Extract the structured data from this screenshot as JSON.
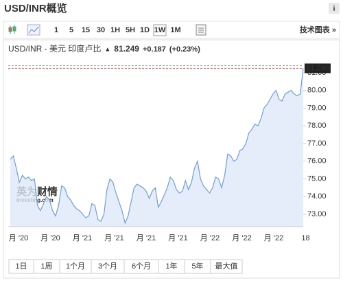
{
  "header": {
    "title": "USD/INR概览",
    "info": "i"
  },
  "toolbar": {
    "intervals": [
      "1",
      "5",
      "15",
      "30",
      "1H",
      "5H",
      "1D",
      "1W",
      "1M"
    ],
    "selected": "1W",
    "advanced": "技术图表 »"
  },
  "quote": {
    "name": "USD/INR - 美元 印度卢比",
    "arrow": "▲",
    "price": "81.249",
    "change": "+0.187",
    "change_pct": "(+0.23%)"
  },
  "watermark": {
    "brand": "英为财情",
    "site": "Investing.com"
  },
  "chart_data": {
    "type": "area",
    "color": "#6f9fd8",
    "values": [
      76.1,
      76.3,
      75.6,
      74.8,
      75.2,
      75.0,
      75.1,
      74.9,
      75.0,
      73.5,
      73.2,
      73.6,
      74.0,
      73.8,
      73.2,
      72.9,
      73.5,
      74.6,
      74.5,
      74.0,
      73.8,
      73.5,
      73.3,
      73.2,
      73.0,
      72.8,
      72.9,
      73.6,
      73.5,
      72.7,
      72.6,
      73.0,
      74.4,
      75.0,
      74.8,
      74.2,
      73.7,
      73.2,
      72.5,
      72.9,
      73.7,
      74.5,
      74.7,
      74.6,
      74.5,
      74.3,
      73.9,
      74.3,
      74.5,
      73.4,
      73.7,
      74.1,
      74.5,
      75.1,
      74.9,
      74.4,
      74.2,
      74.3,
      74.9,
      74.4,
      74.8,
      75.6,
      76.0,
      75.0,
      74.6,
      74.4,
      74.2,
      74.5,
      75.1,
      75.0,
      74.5,
      75.2,
      76.4,
      76.3,
      76.0,
      76.1,
      76.6,
      76.7,
      77.0,
      77.6,
      77.8,
      78.1,
      78.0,
      78.4,
      79.0,
      79.2,
      79.5,
      79.8,
      80.0,
      79.5,
      79.4,
      79.8,
      79.9,
      80.0,
      79.8,
      79.7,
      79.8,
      81.249
    ],
    "last": 81.249,
    "x_labels": [
      "月 '20",
      "月 '20",
      "月 '21",
      "月 '21",
      "月 '21",
      "月 '21",
      "月 '22",
      "月 '22",
      "月 '22",
      "18"
    ],
    "ylim": [
      72.3,
      81.85
    ],
    "yticks": [
      {
        "value": 73,
        "label": "73.00"
      },
      {
        "value": 74,
        "label": "74.00"
      },
      {
        "value": 75,
        "label": "75.00"
      },
      {
        "value": 76,
        "label": "76.00"
      },
      {
        "value": 77,
        "label": "77.00"
      },
      {
        "value": 78,
        "label": "78.00"
      },
      {
        "value": 79,
        "label": "79.00"
      },
      {
        "value": 80,
        "label": "80.00"
      },
      {
        "value": 81,
        "label": "81.00"
      }
    ]
  },
  "ranges": [
    "1日",
    "1周",
    "1个月",
    "3个月",
    "6个月",
    "1年",
    "5年",
    "最大值"
  ]
}
